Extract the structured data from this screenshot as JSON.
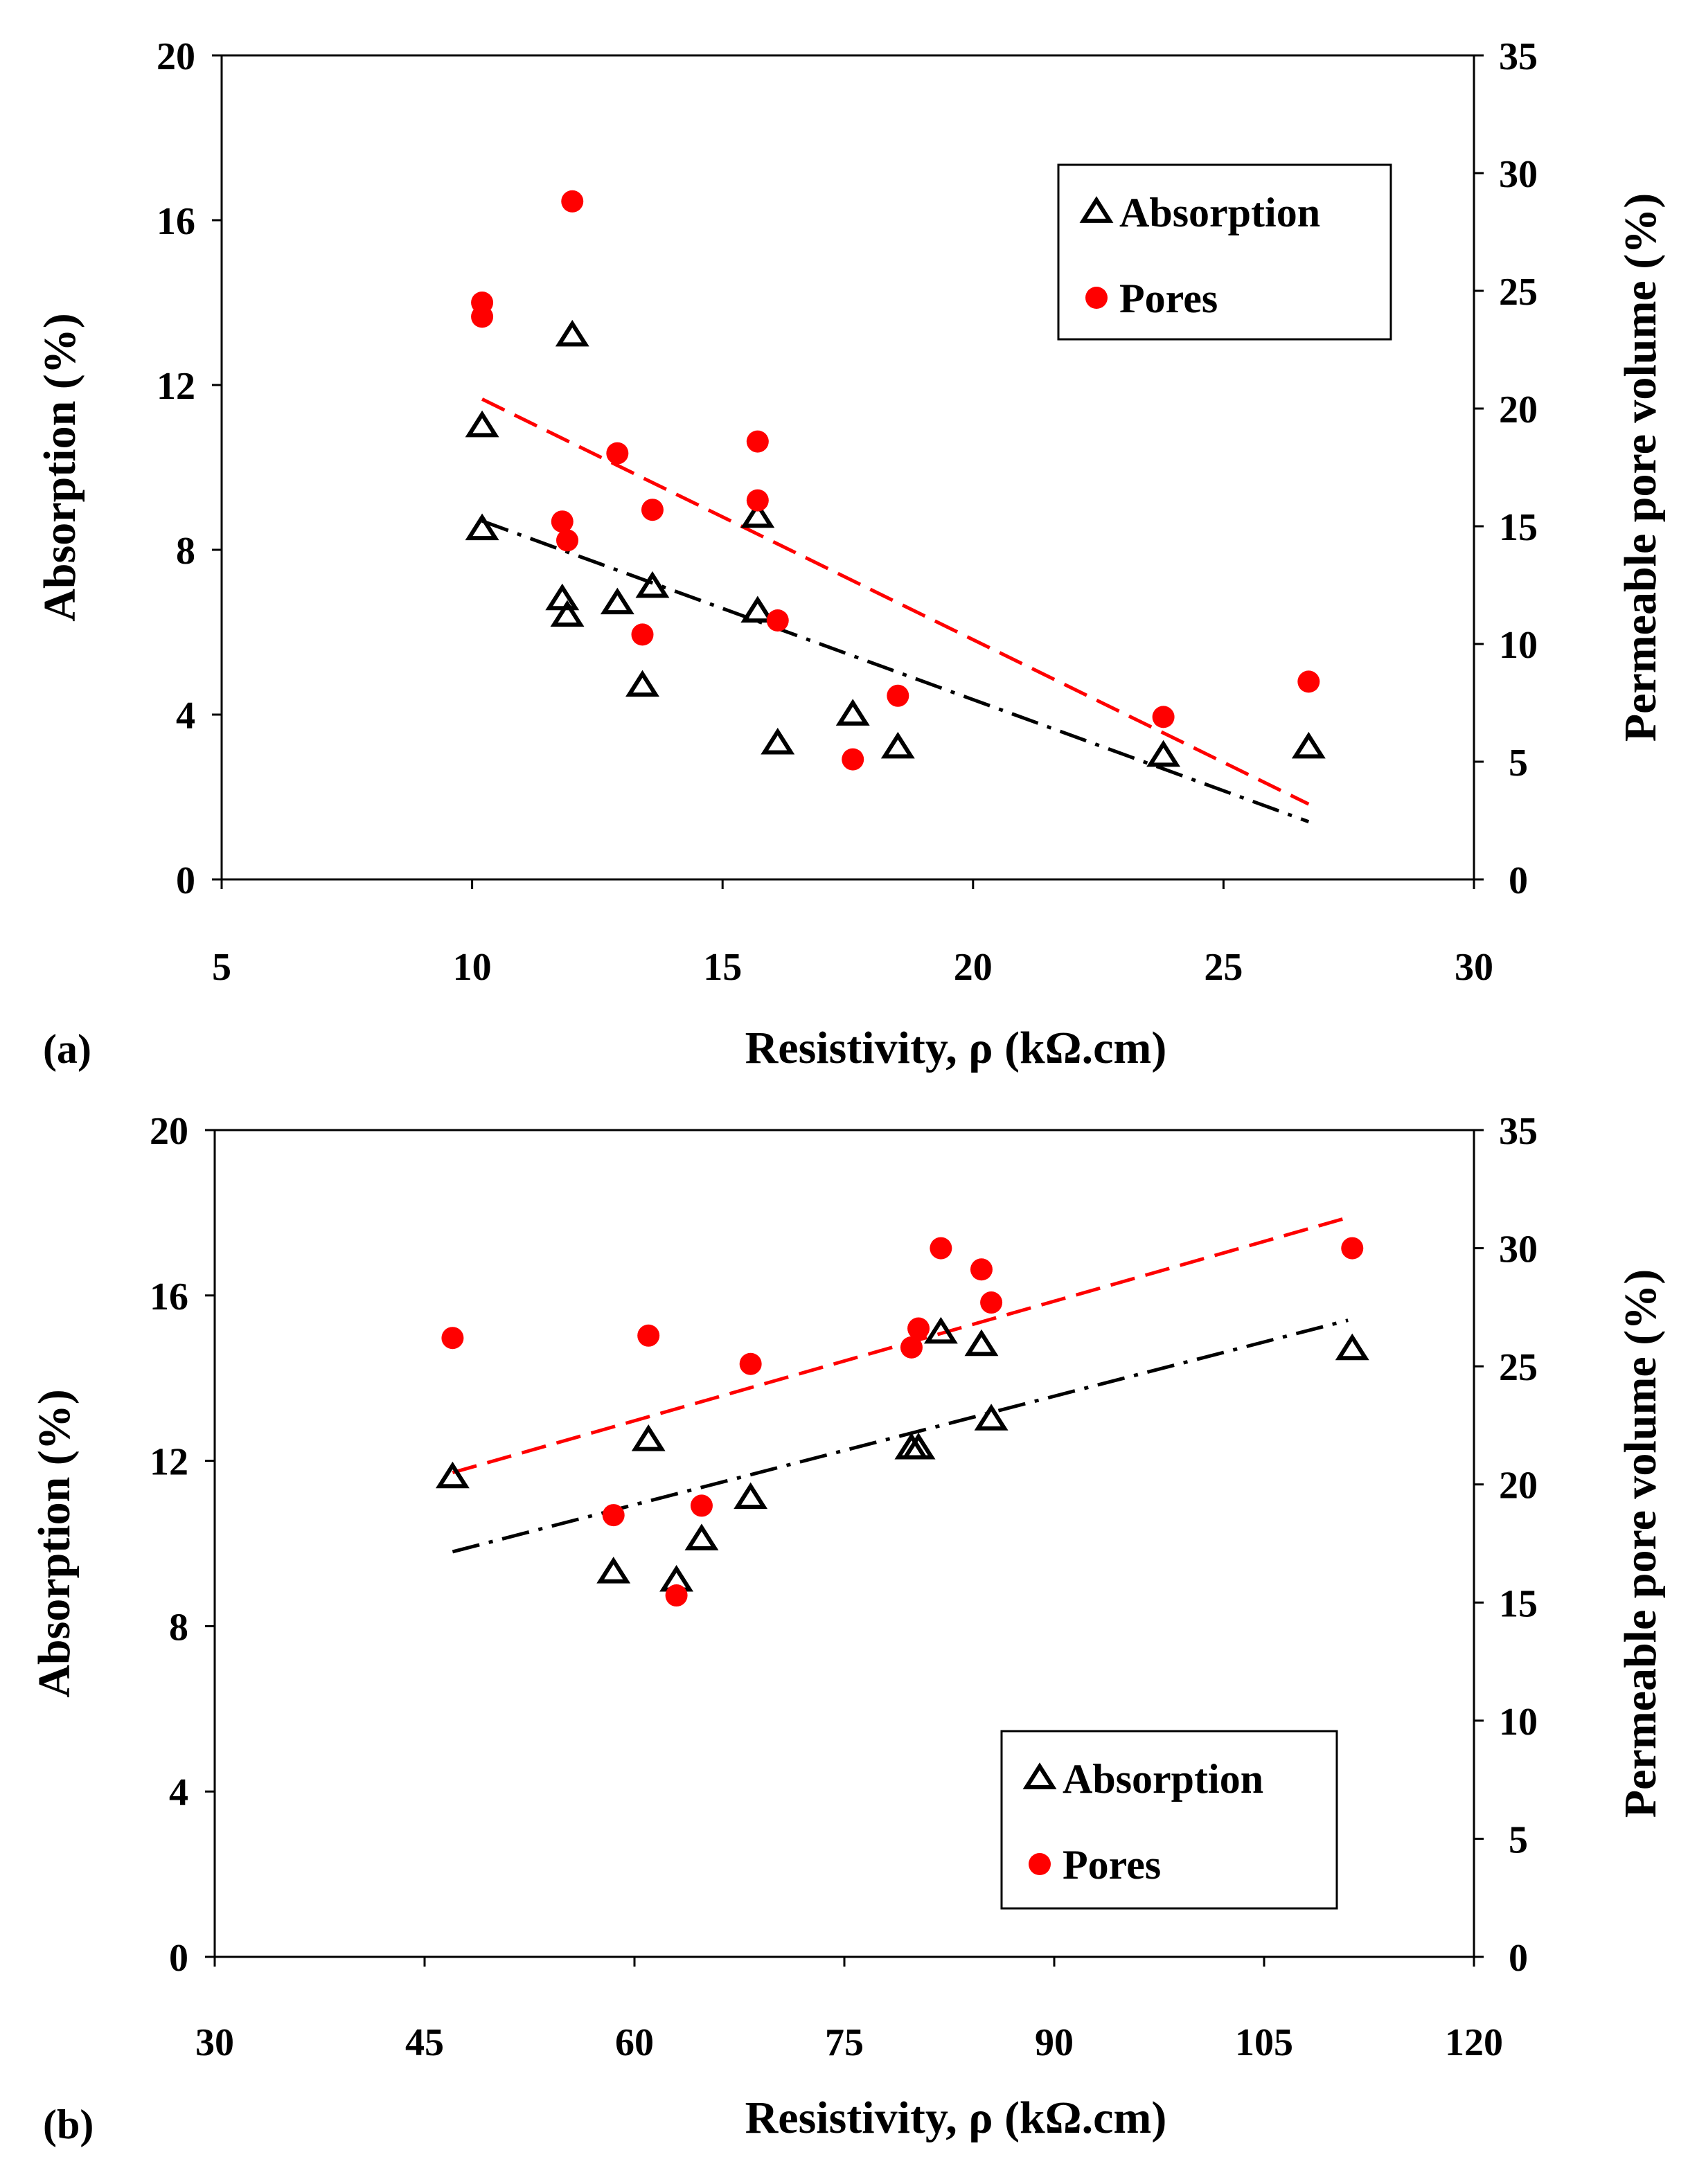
{
  "chart_data": [
    {
      "type": "scatter",
      "panel_label": "(a)",
      "xlabel": "Resistivity, ρ (kΩ.cm)",
      "ylabel": "Absorption (%)",
      "y2label": "Permeable pore volume (%)",
      "xlim": [
        5,
        30
      ],
      "ylim": [
        0,
        20
      ],
      "y2lim": [
        0,
        35
      ],
      "xticks": [
        "5",
        "10",
        "15",
        "20",
        "25",
        "30"
      ],
      "yticks": [
        "0",
        "4",
        "8",
        "12",
        "16",
        "20"
      ],
      "y2ticks": [
        "0",
        "5",
        "10",
        "15",
        "20",
        "25",
        "30",
        "35"
      ],
      "legend_position": "top-right",
      "series": [
        {
          "name": "Absorption",
          "axis": "left",
          "marker": "open-triangle",
          "color": "#000000",
          "x": [
            10.2,
            10.2,
            11.8,
            11.9,
            12.0,
            12.9,
            13.4,
            13.6,
            15.7,
            15.7,
            16.1,
            17.6,
            18.5,
            23.8,
            26.7
          ],
          "y": [
            11.0,
            8.5,
            6.8,
            6.4,
            13.2,
            6.7,
            4.7,
            7.1,
            8.8,
            6.5,
            3.3,
            4.0,
            3.2,
            3.0,
            3.2
          ]
        },
        {
          "name": "Pores",
          "axis": "right",
          "marker": "filled-circle",
          "color": "#ff0000",
          "x": [
            10.2,
            10.2,
            11.8,
            11.9,
            12.0,
            12.9,
            13.4,
            13.6,
            15.7,
            15.7,
            16.1,
            17.6,
            18.5,
            23.8,
            26.7
          ],
          "y": [
            24.5,
            23.9,
            15.2,
            14.4,
            28.8,
            18.1,
            10.4,
            15.7,
            18.6,
            16.1,
            11.0,
            5.1,
            7.8,
            6.9,
            8.4
          ]
        }
      ],
      "trendlines": [
        {
          "series": "Absorption",
          "style": "dash-dot",
          "color": "#000000",
          "x": [
            10.2,
            26.7
          ],
          "y": [
            8.7,
            1.4
          ]
        },
        {
          "series": "Pores",
          "style": "dashed",
          "color": "#ff0000",
          "x": [
            10.2,
            26.7
          ],
          "y": [
            20.4,
            3.2
          ]
        }
      ]
    },
    {
      "type": "scatter",
      "panel_label": "(b)",
      "xlabel": "Resistivity, ρ (kΩ.cm)",
      "ylabel": "Absorption (%)",
      "y2label": "Permeable pore volume (%)",
      "xlim": [
        30,
        120
      ],
      "ylim": [
        0,
        20
      ],
      "y2lim": [
        0,
        35
      ],
      "xticks": [
        "30",
        "45",
        "60",
        "75",
        "90",
        "105",
        "120"
      ],
      "yticks": [
        "0",
        "4",
        "8",
        "12",
        "16",
        "20"
      ],
      "y2ticks": [
        "0",
        "5",
        "10",
        "15",
        "20",
        "25",
        "30",
        "35"
      ],
      "legend_position": "bottom-right",
      "series": [
        {
          "name": "Absorption",
          "axis": "left",
          "marker": "open-triangle",
          "color": "#000000",
          "x": [
            47,
            58.5,
            61,
            63,
            64.8,
            68.3,
            79.8,
            80.3,
            81.9,
            84.8,
            85.5,
            111.3
          ],
          "y": [
            11.6,
            9.3,
            12.5,
            9.1,
            10.1,
            11.1,
            12.3,
            12.3,
            15.1,
            14.8,
            13.0,
            14.7
          ]
        },
        {
          "name": "Pores",
          "axis": "right",
          "marker": "filled-circle",
          "color": "#ff0000",
          "x": [
            47,
            58.5,
            61,
            63,
            64.8,
            68.3,
            79.8,
            80.3,
            81.9,
            84.8,
            85.5,
            111.3
          ],
          "y": [
            26.2,
            18.7,
            26.3,
            15.3,
            19.1,
            25.1,
            25.8,
            26.6,
            30.0,
            29.1,
            27.7,
            30.0
          ]
        }
      ],
      "trendlines": [
        {
          "series": "Absorption",
          "style": "dash-dot",
          "color": "#000000",
          "x": [
            47,
            111
          ],
          "y": [
            9.8,
            15.4
          ]
        },
        {
          "series": "Pores",
          "style": "dashed",
          "color": "#ff0000",
          "x": [
            47,
            111
          ],
          "y": [
            20.5,
            31.3
          ]
        }
      ]
    }
  ]
}
